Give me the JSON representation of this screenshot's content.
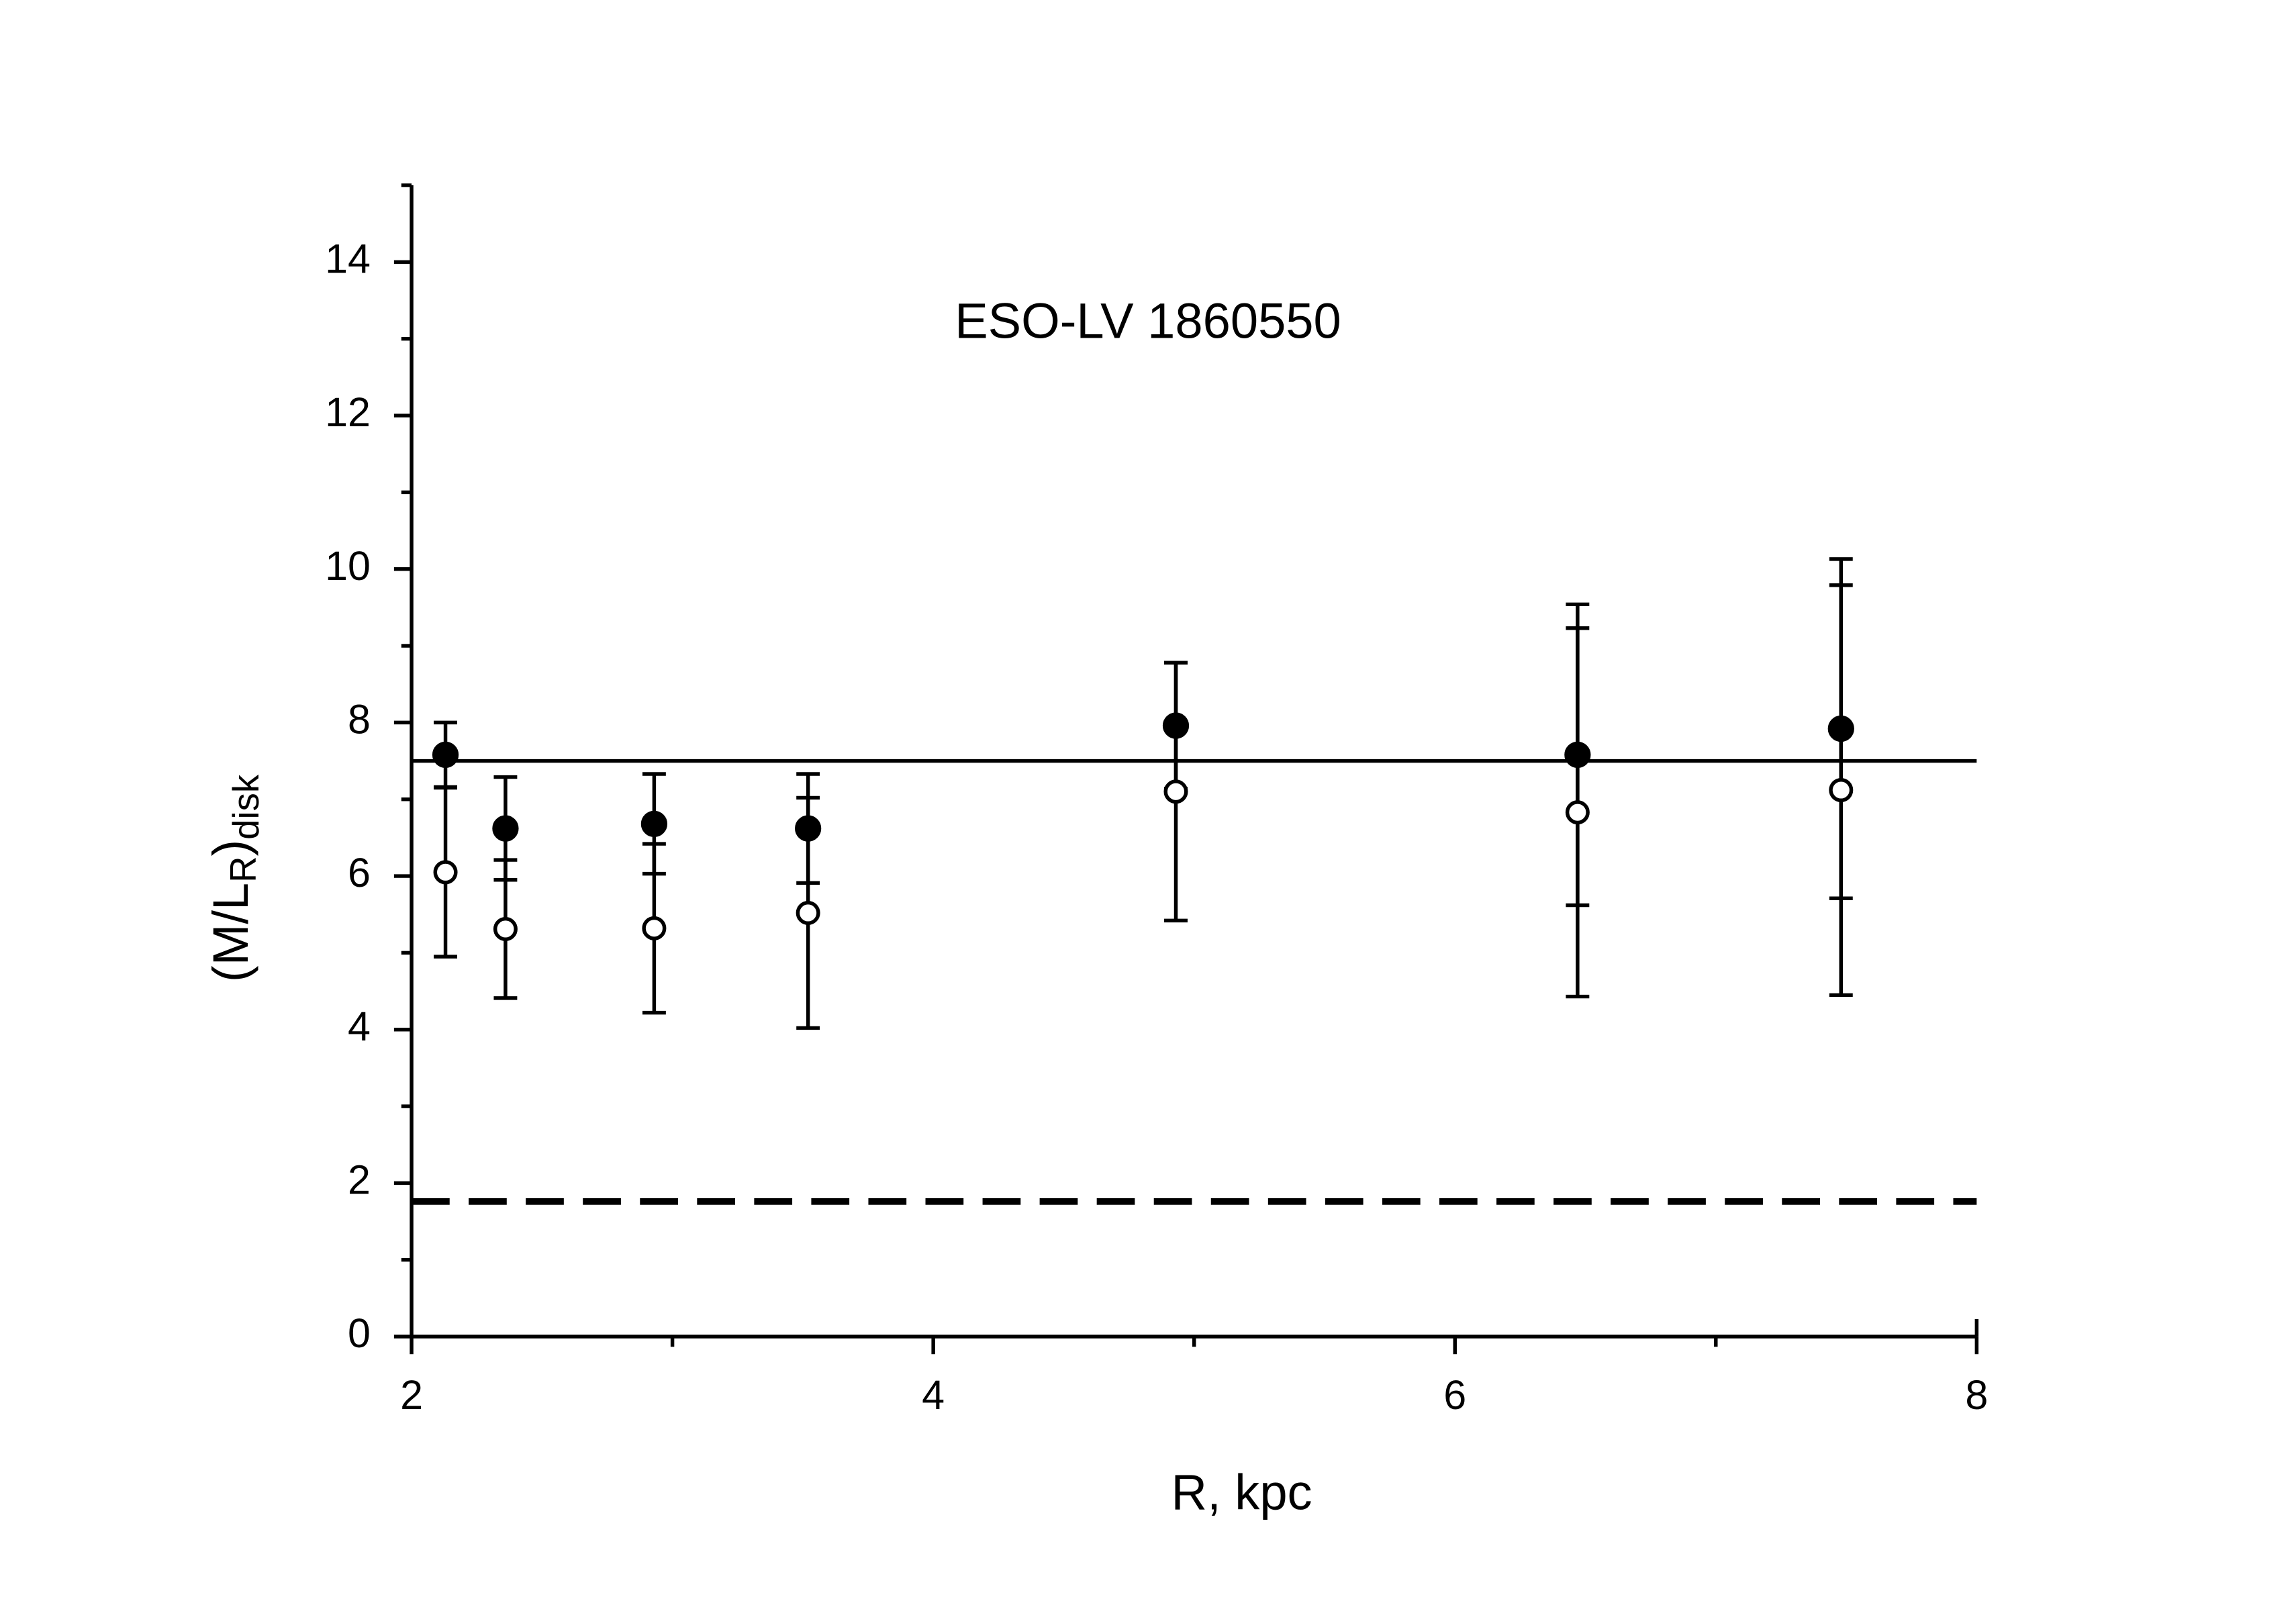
{
  "chart_data": {
    "type": "errorbar_scatter",
    "title": "ESO-LV 1860550",
    "xlabel": "R, kpc",
    "ylabel": [
      "(M/L",
      "R",
      ")",
      "disk"
    ],
    "xlim": [
      2,
      8
    ],
    "ylim": [
      0,
      15
    ],
    "xticks": [
      2,
      4,
      6,
      8
    ],
    "xminorticks": [
      3,
      5,
      7
    ],
    "yticks": [
      0,
      2,
      4,
      6,
      8,
      10,
      12,
      14
    ],
    "yminorticks": [
      1,
      3,
      5,
      7,
      9,
      11,
      13,
      15
    ],
    "x": [
      2.13,
      2.36,
      2.93,
      3.52,
      4.93,
      6.47,
      7.48
    ],
    "series": [
      {
        "marker": "filled",
        "color": "#000000",
        "values": [
          7.58,
          6.62,
          6.68,
          6.62,
          7.96,
          7.58,
          7.92
        ],
        "errors": [
          0.42,
          0.67,
          0.65,
          0.71,
          0.82,
          1.96,
          2.21
        ]
      },
      {
        "marker": "open",
        "color": "#000000",
        "values": [
          6.05,
          5.31,
          5.32,
          5.52,
          7.1,
          6.83,
          7.12
        ],
        "errors": [
          1.1,
          0.9,
          1.1,
          1.5,
          1.68,
          2.4,
          2.67
        ]
      }
    ],
    "reference_lines": [
      {
        "value": 7.5,
        "style": "solid"
      },
      {
        "value": 1.76,
        "style": "dashed"
      }
    ]
  }
}
